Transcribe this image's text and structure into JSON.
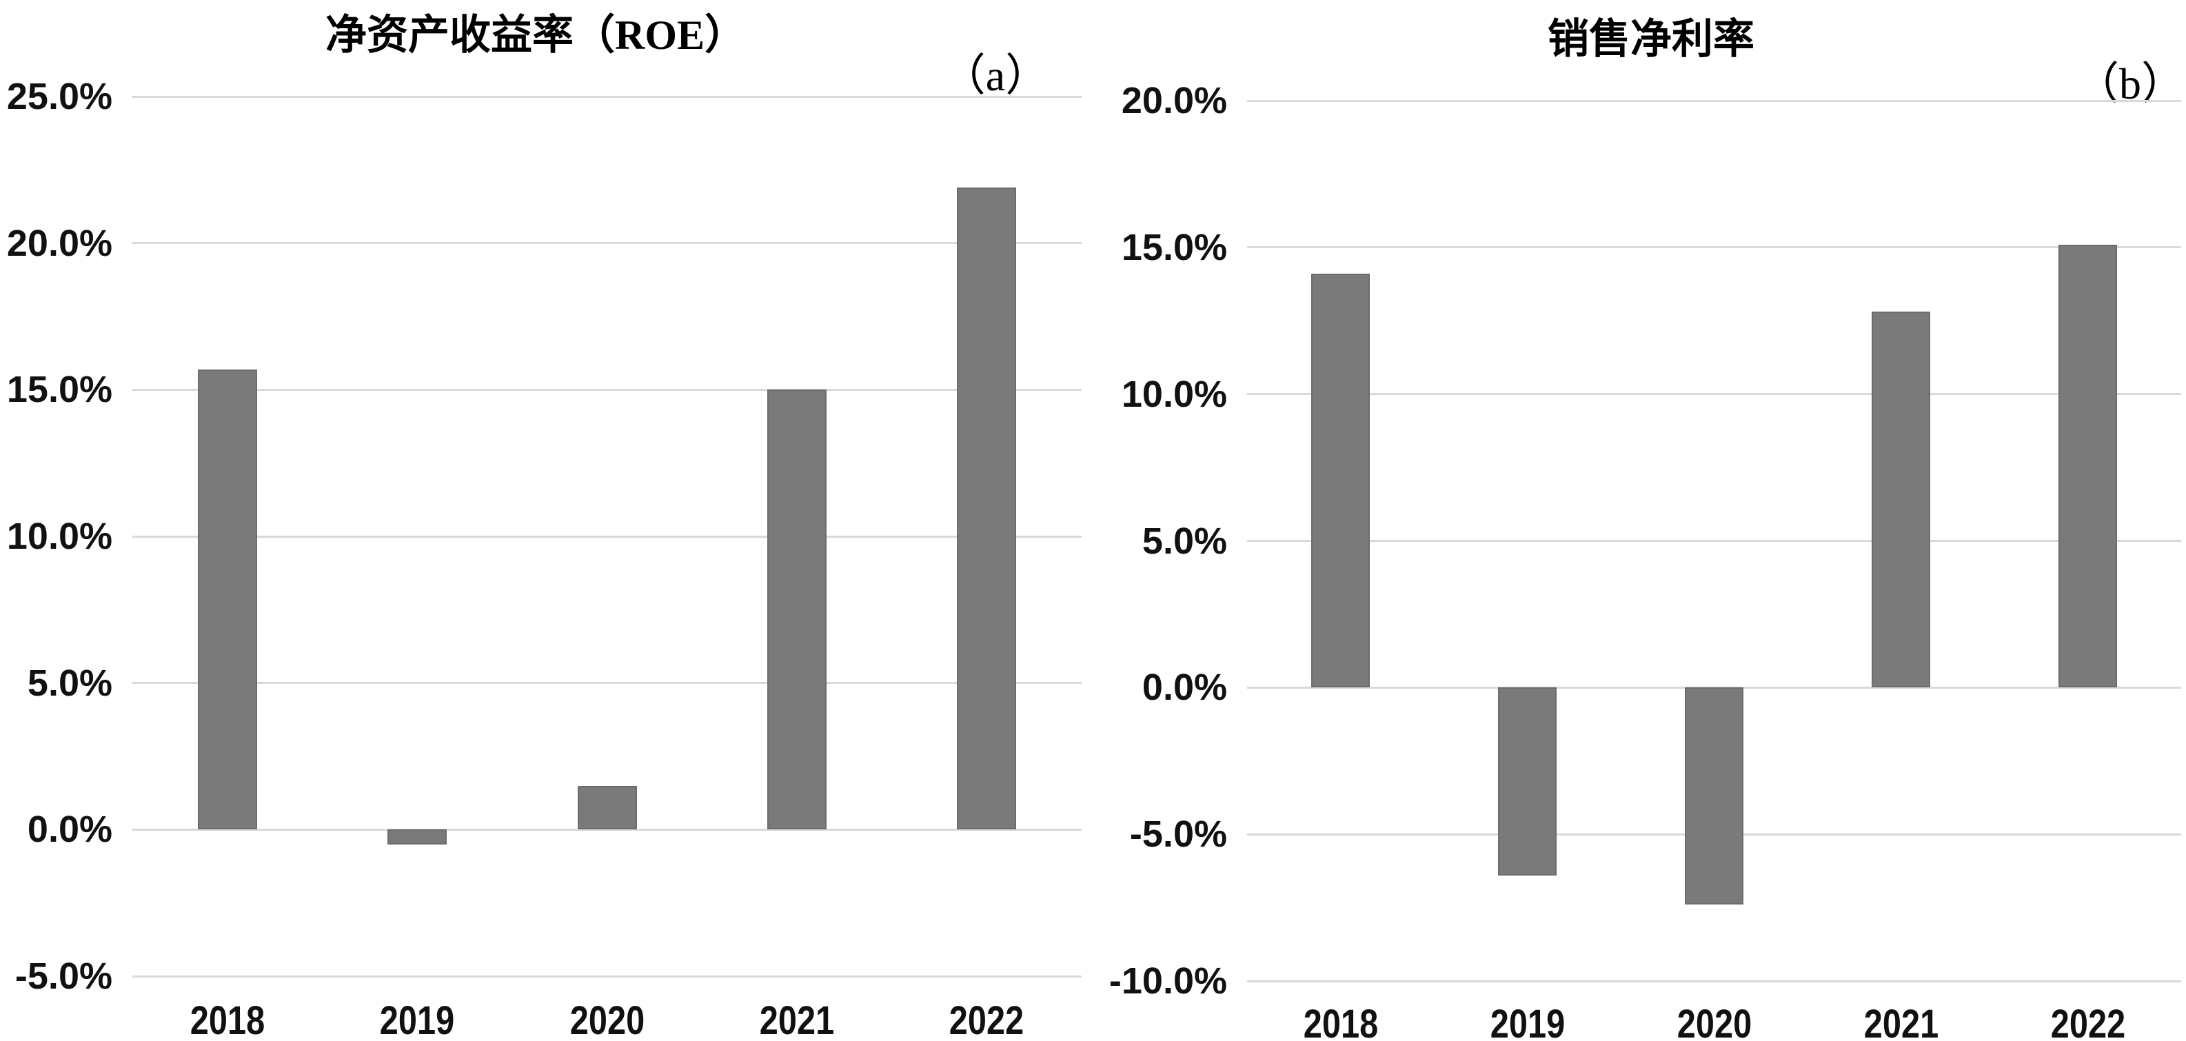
{
  "figure": {
    "background": "#ffffff",
    "bar_color": "#7a7a7a",
    "gridline_color": "#d9d9d9",
    "text_color": "#111111"
  },
  "chart_data": [
    {
      "type": "bar",
      "panel_label": "（a）",
      "title": "净资产收益率（ROE）",
      "categories": [
        "2018",
        "2019",
        "2020",
        "2021",
        "2022"
      ],
      "values": [
        15.7,
        -0.5,
        1.5,
        15.0,
        21.9
      ],
      "unit": "%",
      "xlabel": "",
      "ylabel": "",
      "ylim": [
        -5,
        25
      ],
      "ytick_step": 5,
      "ytick_labels": [
        "25.0%",
        "20.0%",
        "15.0%",
        "10.0%",
        "5.0%",
        "0.0%",
        "-5.0%"
      ],
      "grid": true,
      "legend": "none",
      "bar_color": "#7a7a7a"
    },
    {
      "type": "bar",
      "panel_label": "（b）",
      "title": "销售净利率",
      "categories": [
        "2018",
        "2019",
        "2020",
        "2021",
        "2022"
      ],
      "values": [
        14.1,
        -6.4,
        -7.4,
        12.8,
        15.1
      ],
      "unit": "%",
      "xlabel": "",
      "ylabel": "",
      "ylim": [
        -10,
        20
      ],
      "ytick_step": 5,
      "ytick_labels": [
        "20.0%",
        "15.0%",
        "10.0%",
        "5.0%",
        "0.0%",
        "-5.0%",
        "-10.0%"
      ],
      "grid": true,
      "legend": "none",
      "bar_color": "#7a7a7a"
    }
  ]
}
